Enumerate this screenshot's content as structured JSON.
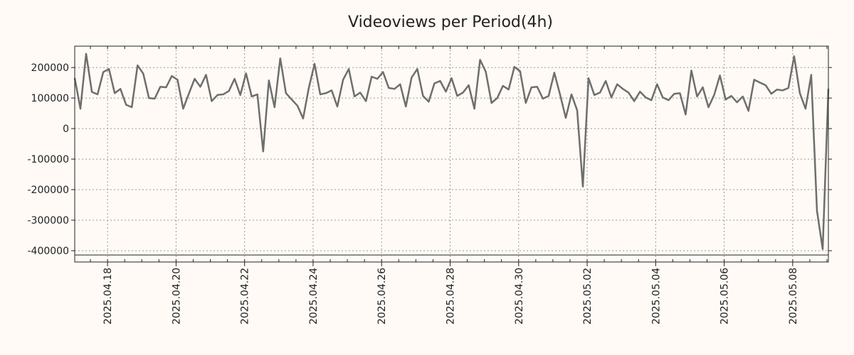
{
  "chart_data": {
    "type": "line",
    "title": "Videoviews per Period(4h)",
    "xlabel": "",
    "ylabel": "",
    "start": "2025-04-17 01:00",
    "interval_hours": 4,
    "values": [
      165000,
      65000,
      245000,
      120000,
      112000,
      185000,
      195000,
      116000,
      130000,
      78000,
      70000,
      207000,
      180000,
      100000,
      98000,
      137000,
      135000,
      172000,
      160000,
      65000,
      115000,
      163000,
      137000,
      176000,
      90000,
      110000,
      112000,
      123000,
      163000,
      110000,
      181000,
      105000,
      112000,
      -75000,
      158000,
      70000,
      230000,
      116000,
      95000,
      75000,
      33000,
      133000,
      212000,
      112000,
      116000,
      125000,
      72000,
      160000,
      195000,
      105000,
      118000,
      90000,
      170000,
      163000,
      185000,
      133000,
      130000,
      145000,
      72000,
      167000,
      195000,
      107000,
      88000,
      148000,
      156000,
      121000,
      165000,
      107000,
      118000,
      142000,
      65000,
      225000,
      186000,
      84000,
      100000,
      140000,
      128000,
      202000,
      188000,
      84000,
      135000,
      137000,
      98000,
      107000,
      183000,
      112000,
      35000,
      112000,
      60000,
      -190000,
      165000,
      110000,
      118000,
      156000,
      102000,
      145000,
      130000,
      118000,
      90000,
      121000,
      102000,
      93000,
      145000,
      102000,
      93000,
      114000,
      116000,
      46000,
      190000,
      105000,
      135000,
      70000,
      110000,
      174000,
      95000,
      107000,
      86000,
      105000,
      58000,
      160000,
      151000,
      142000,
      114000,
      128000,
      125000,
      133000,
      237000,
      116000,
      65000,
      176000,
      -270000,
      -395000,
      130000
    ],
    "ylim": [
      -437000,
      270000
    ],
    "yticks": [
      200000,
      100000,
      0,
      -100000,
      -200000,
      -300000,
      -400000
    ],
    "ytick_labels": [
      "200000",
      "100000",
      "0",
      "-100000",
      "-200000",
      "-300000",
      "-400000"
    ],
    "xticks_day_offset": [
      1,
      3,
      5,
      7,
      9,
      11,
      13,
      15,
      17,
      19,
      21
    ],
    "xtick_labels": [
      "2025.04.18",
      "2025.04.20",
      "2025.04.22",
      "2025.04.24",
      "2025.04.26",
      "2025.04.28",
      "2025.04.30",
      "2025.05.02",
      "2025.05.04",
      "2025.05.06",
      "2025.05.08"
    ],
    "reference_line": -414000,
    "grid": true,
    "line_color": "#6e6e6e",
    "background": "#fffaf5"
  }
}
